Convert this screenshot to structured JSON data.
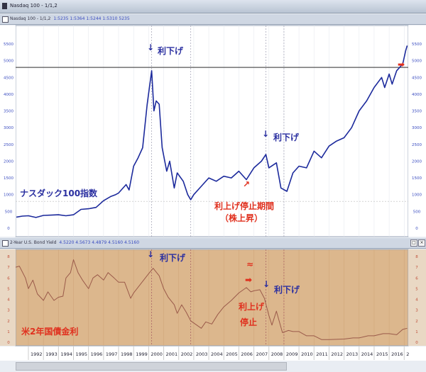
{
  "window": {
    "title": "Nasdaq 100 - 1/1,2"
  },
  "upper_panel": {
    "header": "Nasdaq 100 - 1/1,2",
    "values": "1:5235  1:5364  1:5244  1:5310  5235"
  },
  "lower_panel": {
    "header": "2-Year U.S. Bond Yield",
    "values": "4.5220  4.5673  4.4879  4.5160  4.5160"
  },
  "annotations": {
    "rate_cut_1": "利下げ",
    "rate_cut_2": "利下げ",
    "nasdaq_label": "ナスダック100指数",
    "pause_period": "利上げ停止期間",
    "stock_rise": "（株上昇）",
    "rate_cut_3": "利下げ",
    "rate_cut_4": "利下げ",
    "hike_pause_1": "利上げ",
    "hike_pause_2": "停止",
    "yield_label": "米2年国債金利",
    "wave_mark": "≈"
  },
  "colors": {
    "nasdaq_line": "#1c2a9c",
    "yield_line": "#9a5a4a",
    "yield_bg": "#dcb78d",
    "annotation_red": "#e0301e",
    "annotation_blue": "#2a2fa0"
  },
  "chart_data": [
    {
      "type": "line",
      "title": "",
      "series": [
        {
          "name": "ナスダック100指数",
          "points": [
            [
              1991.2,
              330
            ],
            [
              1991.6,
              360
            ],
            [
              1992,
              370
            ],
            [
              1992.5,
              320
            ],
            [
              1993,
              380
            ],
            [
              1993.5,
              390
            ],
            [
              1994,
              400
            ],
            [
              1994.5,
              370
            ],
            [
              1995,
              400
            ],
            [
              1995.5,
              560
            ],
            [
              1996,
              580
            ],
            [
              1996.5,
              620
            ],
            [
              1997,
              820
            ],
            [
              1997.5,
              950
            ],
            [
              1997.8,
              1000
            ],
            [
              1998,
              1050
            ],
            [
              1998.5,
              1300
            ],
            [
              1998.7,
              1140
            ],
            [
              1999,
              1850
            ],
            [
              1999.3,
              2100
            ],
            [
              1999.6,
              2400
            ],
            [
              1999.9,
              3700
            ],
            [
              2000.2,
              4700
            ],
            [
              2000.35,
              3500
            ],
            [
              2000.5,
              3800
            ],
            [
              2000.7,
              3700
            ],
            [
              2000.9,
              2400
            ],
            [
              2001.2,
              1700
            ],
            [
              2001.4,
              2000
            ],
            [
              2001.7,
              1200
            ],
            [
              2001.9,
              1650
            ],
            [
              2002.3,
              1400
            ],
            [
              2002.6,
              1000
            ],
            [
              2002.8,
              850
            ],
            [
              2003,
              1000
            ],
            [
              2003.5,
              1250
            ],
            [
              2004,
              1500
            ],
            [
              2004.5,
              1400
            ],
            [
              2005,
              1550
            ],
            [
              2005.5,
              1500
            ],
            [
              2006,
              1700
            ],
            [
              2006.5,
              1450
            ],
            [
              2007,
              1800
            ],
            [
              2007.5,
              2000
            ],
            [
              2007.8,
              2200
            ],
            [
              2008,
              1800
            ],
            [
              2008.5,
              1950
            ],
            [
              2008.8,
              1200
            ],
            [
              2009.2,
              1100
            ],
            [
              2009.6,
              1650
            ],
            [
              2010,
              1850
            ],
            [
              2010.5,
              1800
            ],
            [
              2011,
              2300
            ],
            [
              2011.5,
              2100
            ],
            [
              2012,
              2450
            ],
            [
              2012.5,
              2600
            ],
            [
              2013,
              2700
            ],
            [
              2013.5,
              3000
            ],
            [
              2014,
              3500
            ],
            [
              2014.5,
              3800
            ],
            [
              2015,
              4200
            ],
            [
              2015.5,
              4500
            ],
            [
              2015.7,
              4200
            ],
            [
              2016,
              4600
            ],
            [
              2016.2,
              4300
            ],
            [
              2016.5,
              4700
            ],
            [
              2016.9,
              4900
            ],
            [
              2017.1,
              5300
            ],
            [
              2017.2,
              5450
            ]
          ]
        }
      ],
      "yticks": [
        "0",
        "500",
        "1000",
        "1500",
        "2000",
        "2500",
        "3000",
        "3500",
        "4000",
        "4500",
        "5000",
        "5500"
      ],
      "ylim": [
        0,
        5500
      ],
      "xlim": [
        1991.15,
        2017.27
      ],
      "reference_lines": [
        4800,
        800
      ],
      "event_lines": [
        2000.2,
        2002.8,
        2007.8,
        2009.0
      ]
    },
    {
      "type": "line",
      "title": "",
      "series": [
        {
          "name": "米2年国債金利",
          "points": [
            [
              1991.15,
              7.0
            ],
            [
              1991.4,
              7.1
            ],
            [
              1991.8,
              6.0
            ],
            [
              1992,
              5.0
            ],
            [
              1992.3,
              5.8
            ],
            [
              1992.6,
              4.5
            ],
            [
              1993,
              3.9
            ],
            [
              1993.3,
              4.7
            ],
            [
              1993.7,
              3.9
            ],
            [
              1994,
              4.2
            ],
            [
              1994.3,
              4.3
            ],
            [
              1994.5,
              6.0
            ],
            [
              1994.8,
              6.5
            ],
            [
              1995,
              7.7
            ],
            [
              1995.3,
              6.5
            ],
            [
              1995.6,
              5.8
            ],
            [
              1996,
              5.0
            ],
            [
              1996.3,
              6.0
            ],
            [
              1996.6,
              6.3
            ],
            [
              1997,
              5.8
            ],
            [
              1997.3,
              6.5
            ],
            [
              1997.7,
              6.0
            ],
            [
              1998,
              5.6
            ],
            [
              1998.4,
              5.6
            ],
            [
              1998.8,
              4.1
            ],
            [
              1999,
              4.6
            ],
            [
              1999.5,
              5.5
            ],
            [
              2000,
              6.4
            ],
            [
              2000.3,
              6.9
            ],
            [
              2000.7,
              6.2
            ],
            [
              2001,
              5.0
            ],
            [
              2001.3,
              4.2
            ],
            [
              2001.7,
              3.5
            ],
            [
              2001.9,
              2.7
            ],
            [
              2002.2,
              3.5
            ],
            [
              2002.5,
              2.8
            ],
            [
              2002.8,
              2.0
            ],
            [
              2003.2,
              1.6
            ],
            [
              2003.5,
              1.3
            ],
            [
              2003.8,
              1.9
            ],
            [
              2004.2,
              1.7
            ],
            [
              2004.6,
              2.6
            ],
            [
              2005,
              3.3
            ],
            [
              2005.5,
              3.9
            ],
            [
              2006,
              4.6
            ],
            [
              2006.5,
              5.1
            ],
            [
              2006.8,
              4.7
            ],
            [
              2007,
              4.8
            ],
            [
              2007.4,
              4.9
            ],
            [
              2007.7,
              4.1
            ],
            [
              2008,
              2.5
            ],
            [
              2008.2,
              1.6
            ],
            [
              2008.5,
              2.9
            ],
            [
              2008.9,
              0.9
            ],
            [
              2009.3,
              1.1
            ],
            [
              2009.6,
              1.0
            ],
            [
              2010,
              1.0
            ],
            [
              2010.5,
              0.6
            ],
            [
              2011,
              0.6
            ],
            [
              2011.5,
              0.25
            ],
            [
              2012,
              0.25
            ],
            [
              2013,
              0.3
            ],
            [
              2013.6,
              0.4
            ],
            [
              2014,
              0.4
            ],
            [
              2014.6,
              0.6
            ],
            [
              2015,
              0.6
            ],
            [
              2015.6,
              0.8
            ],
            [
              2016,
              0.8
            ],
            [
              2016.5,
              0.7
            ],
            [
              2016.9,
              1.2
            ],
            [
              2017.2,
              1.3
            ]
          ]
        }
      ],
      "yticks": [
        "0",
        "1",
        "2",
        "3",
        "4",
        "5",
        "6",
        "7",
        "8"
      ],
      "ylim": [
        0,
        8
      ],
      "xlim": [
        1991.15,
        2017.27
      ],
      "xticks": [
        "1992",
        "1993",
        "1994",
        "1995",
        "1996",
        "1997",
        "1998",
        "1999",
        "2000",
        "2001",
        "2002",
        "2003",
        "2004",
        "2005",
        "2006",
        "2007",
        "2008",
        "2009",
        "2010",
        "2011",
        "2012",
        "2013",
        "2014",
        "2015",
        "2016",
        "2"
      ]
    }
  ]
}
